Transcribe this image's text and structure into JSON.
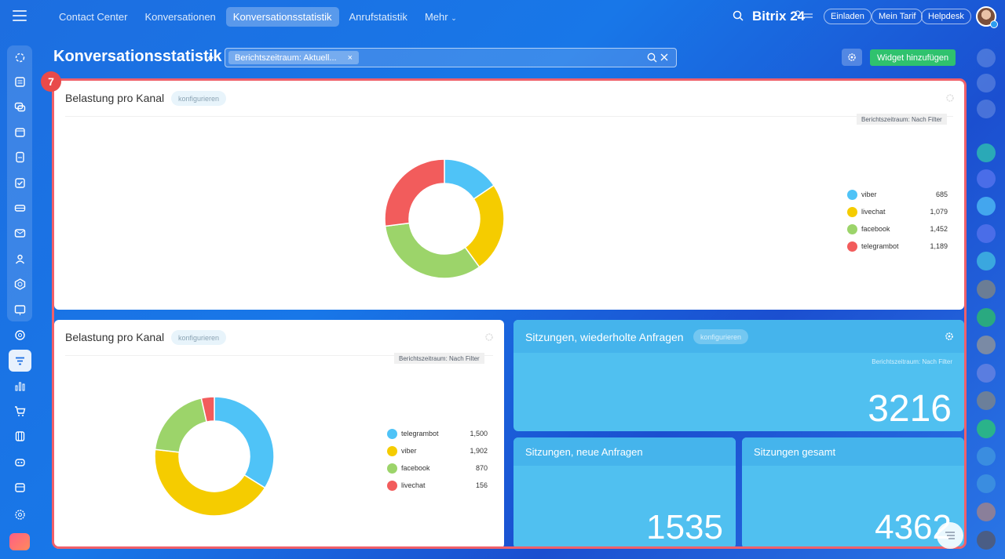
{
  "nav": {
    "items": [
      {
        "label": "Contact Center",
        "active": false
      },
      {
        "label": "Konversationen",
        "active": false
      },
      {
        "label": "Konversationsstatistik",
        "active": true
      },
      {
        "label": "Anrufstatistik",
        "active": false
      },
      {
        "label": "Mehr",
        "active": false
      }
    ]
  },
  "header": {
    "logo_text": "Bitrix",
    "logo_num": "24",
    "invite_label": "Einladen",
    "tariff_label": "Mein Tarif",
    "helpdesk_label": "Helpdesk"
  },
  "page": {
    "title": "Konversationsstatistik",
    "filter_tag": "Berichtszeitraum: Aktuell...",
    "add_widget_label": "Widget hinzufügen",
    "step_badge": "7"
  },
  "widgets": {
    "top": {
      "title": "Belastung pro Kanal",
      "config_label": "konfigurieren",
      "period_label": "Berichtszeitraum: Nach Filter"
    },
    "bottom_left": {
      "title": "Belastung pro Kanal",
      "config_label": "konfigurieren",
      "period_label": "Berichtszeitraum: Nach Filter"
    },
    "sessions_repeat": {
      "title": "Sitzungen, wiederholte Anfragen",
      "config_label": "konfigurieren",
      "period_label": "Berichtszeitraum: Nach Filter",
      "value": "3216"
    },
    "sessions_new": {
      "title": "Sitzungen, neue Anfragen",
      "value": "1535"
    },
    "sessions_total": {
      "title": "Sitzungen gesamt",
      "value": "4362"
    }
  },
  "colors": {
    "viber": "#4fc3f7",
    "livechat": "#f5cc00",
    "facebook": "#9cd46a",
    "telegrambot": "#f25c5c",
    "accent_green": "#2fc26e"
  },
  "chart_data": [
    {
      "type": "pie",
      "categories": [
        "viber",
        "livechat",
        "facebook",
        "telegrambot"
      ],
      "values": [
        685,
        1079,
        1452,
        1189
      ],
      "value_labels": [
        "685",
        "1,079",
        "1,452",
        "1,189"
      ],
      "colors": [
        "#4fc3f7",
        "#f5cc00",
        "#9cd46a",
        "#f25c5c"
      ],
      "donut": true,
      "legend": "right"
    },
    {
      "type": "pie",
      "categories": [
        "telegrambot",
        "viber",
        "facebook",
        "livechat"
      ],
      "values": [
        1500,
        1902,
        870,
        156
      ],
      "value_labels": [
        "1,500",
        "1,902",
        "870",
        "156"
      ],
      "colors": [
        "#4fc3f7",
        "#f5cc00",
        "#9cd46a",
        "#f25c5c"
      ],
      "donut": true,
      "legend": "right"
    }
  ]
}
